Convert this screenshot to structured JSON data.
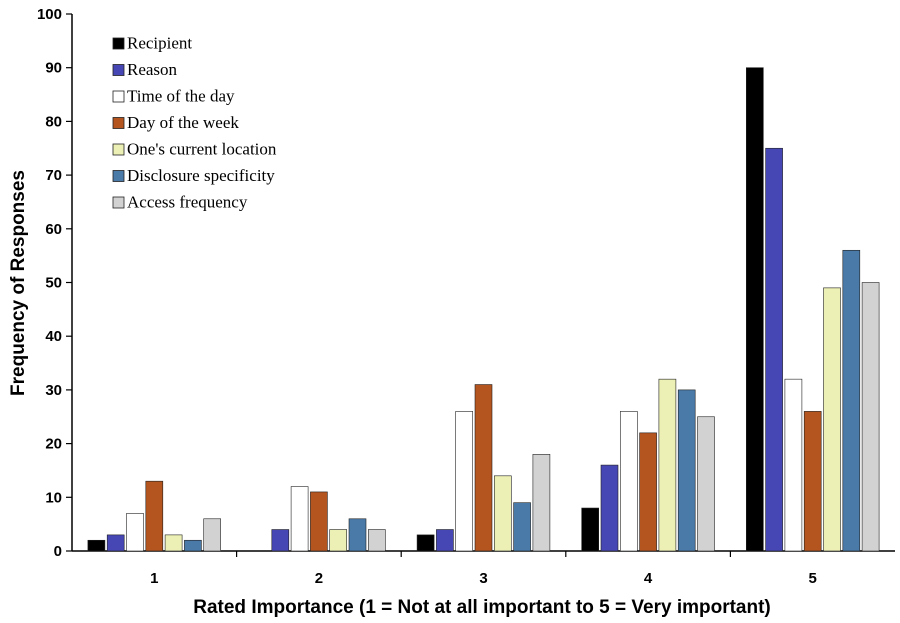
{
  "chart_data": {
    "type": "bar",
    "title": "",
    "xlabel": "Rated Importance (1 = Not at all important to 5 = Very important)",
    "ylabel": "Frequency of Responses",
    "ylim": [
      0,
      100
    ],
    "yticks": [
      "0",
      "10",
      "20",
      "30",
      "40",
      "50",
      "60",
      "70",
      "80",
      "90",
      "100"
    ],
    "categories": [
      "1",
      "2",
      "3",
      "4",
      "5"
    ],
    "grid": false,
    "legend_position": "top-left",
    "series": [
      {
        "name": "Recipient",
        "color": "#000000",
        "values": [
          2,
          0,
          3,
          8,
          90
        ]
      },
      {
        "name": "Reason",
        "color": "#4646b4",
        "values": [
          3,
          4,
          4,
          16,
          75
        ]
      },
      {
        "name": "Time of the day",
        "color": "#ffffff",
        "values": [
          7,
          12,
          26,
          26,
          32
        ]
      },
      {
        "name": "Day of the week",
        "color": "#b4541e",
        "values": [
          13,
          11,
          31,
          22,
          26
        ]
      },
      {
        "name": "One's current location",
        "color": "#ecf0b4",
        "values": [
          3,
          4,
          14,
          32,
          49
        ]
      },
      {
        "name": "Disclosure specificity",
        "color": "#4a7aa8",
        "values": [
          2,
          6,
          9,
          30,
          56
        ]
      },
      {
        "name": "Access frequency",
        "color": "#d2d2d2",
        "values": [
          6,
          4,
          18,
          25,
          50
        ]
      }
    ]
  }
}
